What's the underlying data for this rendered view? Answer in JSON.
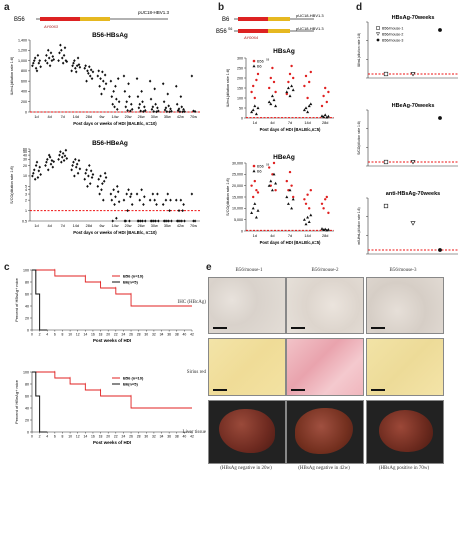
{
  "panels": {
    "a": {
      "letter": "a",
      "construct": {
        "strain": "B56",
        "label_right": "pUC18-HBV1.3",
        "ablbl": "AY0063",
        "arrows": [
          "S",
          "M",
          "X"
        ]
      },
      "hbsag_title": "B56-HBsAg",
      "hbsag_ylabel": "IU/mL(dilution rate 1:8)",
      "hbeag_title": "B56-HBeAg",
      "hbeag_ylabel": "S/CO(dilution rate 1:8)",
      "xlabel": "Post days or weeks of HDI (BALB/c, n=10)",
      "categories": [
        "1d",
        "4d",
        "7d",
        "14d",
        "28d",
        "6w",
        "14w",
        "20w",
        "26w",
        "30w",
        "35w",
        "42w",
        "70w"
      ]
    },
    "b": {
      "letter": "b",
      "construct": {
        "strain1": "B6",
        "strain2": "B56",
        "sup": "S6",
        "label1": "pUC18-HBV1.3",
        "label2": "pUC18-HBV1.3",
        "ablbl": "AY0064"
      },
      "hbsag_title": "HBsAg",
      "hbsag_ylabel": "IU/mL(dilution rate 1:8)",
      "hbeag_title": "HBeAg",
      "hbeag_ylabel": "S/CO(dilution rate 1:8)",
      "xlabel": "Post days of HDI (BALB/c,n=5)",
      "legend": [
        "B56",
        "B6"
      ],
      "legend_sup": "S6",
      "categories": [
        "1d",
        "4d",
        "7d",
        "14d",
        "28d"
      ]
    },
    "d": {
      "letter": "d",
      "hbsag_title": "HBsAg-70weeks",
      "hbsag_ylabel": "IU/mL(dilution rate 1:8)",
      "hbeag_title": "HBeAg-70weeks",
      "hbeag_ylabel": "S/CO(dilution rate 1:8)",
      "antihbs_title": "anti-HBsAg-70weeks",
      "antihbs_ylabel": "mIU/mL(dilution rate 1:8)",
      "legend": [
        "B56/mouse-1",
        "B56/mouse-2",
        "B56/mouse-3"
      ]
    },
    "c": {
      "letter": "c",
      "top_ylabel": "Percent of HBsAg+ mice",
      "bottom_ylabel": "Percent of HBeAg+ mice",
      "xlabel": "Post weeks of HDI",
      "legend": [
        "B56 (n=10)",
        "B6(n=5)"
      ],
      "xticks": [
        "0",
        "2",
        "4",
        "6",
        "8",
        "10",
        "12",
        "14",
        "16",
        "18",
        "20",
        "22",
        "24",
        "26",
        "28",
        "30",
        "32",
        "34",
        "36",
        "38",
        "40",
        "42"
      ],
      "yticks": [
        "0",
        "20",
        "40",
        "60",
        "80",
        "100"
      ]
    },
    "e": {
      "letter": "e",
      "columns": [
        "B56/mouse-1",
        "B56/mouse-2",
        "B56/mouse-3"
      ],
      "rows": [
        "IHC (HBcAg)",
        "Sirius red",
        "Liver tissue"
      ],
      "captions": [
        "(HBsAg negative in 20w)",
        "(HBsAg negative in 42w)",
        "(HBsAg positive in 70w)"
      ]
    }
  },
  "chart_data": [
    {
      "type": "scatter",
      "title": "B56-HBsAg",
      "ylabel": "IU/mL(dilution rate 1:8)",
      "xlabel": "Post days or weeks of HDI (BALB/c, n=10)",
      "categories": [
        "1d",
        "4d",
        "7d",
        "14d",
        "28d",
        "6w",
        "14w",
        "20w",
        "26w",
        "30w",
        "35w",
        "42w",
        "70w"
      ],
      "yticks": [
        0,
        200,
        400,
        600,
        800,
        1000,
        1200,
        1400
      ],
      "ylim": [
        0,
        1400
      ],
      "cutoff": 0.05,
      "series": [
        {
          "values": [
            [
              900,
              950,
              1000,
              1050,
              850,
              800,
              1100,
              950,
              1000,
              880
            ],
            [
              1000,
              1100,
              950,
              1200,
              1050,
              900,
              1150,
              1000,
              1080,
              1020
            ],
            [
              1000,
              1150,
              1300,
              1200,
              1050,
              950,
              1100,
              1250,
              1000,
              980
            ],
            [
              800,
              900,
              950,
              1000,
              850,
              780,
              900,
              1050,
              920,
              870
            ],
            [
              850,
              900,
              600,
              800,
              750,
              880,
              700,
              820,
              650,
              780
            ],
            [
              700,
              800,
              500,
              650,
              350,
              780,
              600,
              450,
              720,
              550
            ],
            [
              600,
              300,
              150,
              400,
              100,
              500,
              250,
              50,
              650,
              200
            ],
            [
              700,
              400,
              100,
              200,
              30,
              550,
              300,
              20,
              150,
              50
            ],
            [
              650,
              300,
              80,
              150,
              20,
              400,
              200,
              10,
              100,
              30
            ],
            [
              600,
              250,
              50,
              100,
              10,
              450,
              150,
              5,
              80,
              20
            ],
            [
              550,
              200,
              40,
              80,
              8,
              350,
              120,
              5,
              60,
              15
            ],
            [
              500,
              150,
              30,
              60,
              5,
              300,
              100,
              4,
              50,
              10
            ],
            [
              700,
              20,
              10
            ]
          ]
        }
      ]
    },
    {
      "type": "scatter",
      "title": "B56-HBeAg",
      "ylabel": "S/CO(dilution rate 1:8)",
      "xlabel": "Post days or weeks of HDI (BALB/c, n=10)",
      "categories": [
        "1d",
        "4d",
        "7d",
        "14d",
        "28d",
        "6w",
        "14w",
        "20w",
        "26w",
        "30w",
        "35w",
        "42w",
        "70w"
      ],
      "yticks": [
        0.5,
        1,
        2,
        3,
        4,
        5,
        10,
        20,
        30,
        40,
        50,
        60
      ],
      "cutoff": 1,
      "series": [
        {
          "values": [
            [
              10,
              12,
              15,
              8,
              20,
              25,
              9,
              14,
              18,
              11
            ],
            [
              20,
              25,
              30,
              15,
              40,
              35,
              22,
              28,
              18,
              26
            ],
            [
              30,
              40,
              50,
              25,
              35,
              45,
              28,
              38,
              55,
              32
            ],
            [
              15,
              20,
              25,
              10,
              30,
              18,
              22,
              12,
              28,
              16
            ],
            [
              8,
              12,
              15,
              5,
              10,
              20,
              6,
              14,
              9,
              11
            ],
            [
              5,
              8,
              3,
              10,
              4,
              6,
              2,
              7,
              12,
              9
            ],
            [
              3,
              2,
              0.5,
              4,
              1.5,
              2.5,
              0.6,
              5,
              3.5,
              1.8
            ],
            [
              2,
              0.5,
              0.5,
              3,
              1,
              4,
              0.5,
              2.5,
              3,
              1.5
            ],
            [
              3,
              0.5,
              0.5,
              2,
              0.5,
              4,
              0.5,
              1.5,
              2.5,
              0.5
            ],
            [
              2,
              0.5,
              0.5,
              3,
              0.5,
              2,
              0.5,
              1.5,
              3,
              0.5
            ],
            [
              1.5,
              0.5,
              0.5,
              2,
              0.5,
              3,
              0.5,
              1,
              2,
              0.5
            ],
            [
              2,
              0.5,
              0.5,
              1,
              0.5,
              2,
              0.5,
              1,
              1.5,
              0.5
            ],
            [
              3,
              0.5,
              0.5
            ]
          ]
        }
      ]
    },
    {
      "type": "scatter",
      "title": "HBsAg",
      "ylabel": "IU/mL(dilution rate 1:8)",
      "xlabel": "Post days of HDI (BALB/c,n=5)",
      "categories": [
        "1d",
        "4d",
        "7d",
        "14d",
        "28d"
      ],
      "yticks": [
        0,
        50,
        100,
        150,
        200,
        250,
        300
      ],
      "ylim": [
        0,
        300
      ],
      "series": [
        {
          "name": "B56",
          "values": [
            [
              130,
              160,
              100,
              190,
              220
            ],
            [
              150,
              200,
              250,
              180,
              130
            ],
            [
              120,
              180,
              220,
              260,
              200
            ],
            [
              160,
              210,
              100,
              180,
              230
            ],
            [
              60,
              110,
              150,
              80,
              130
            ]
          ]
        },
        {
          "name": "B6",
          "values": [
            [
              30,
              40,
              60,
              20,
              50
            ],
            [
              80,
              70,
              110,
              90,
              60
            ],
            [
              130,
              150,
              110,
              160,
              140
            ],
            [
              40,
              50,
              30,
              60,
              70
            ],
            [
              10,
              5,
              15,
              3,
              8
            ]
          ]
        }
      ]
    },
    {
      "type": "scatter",
      "title": "HBeAg",
      "ylabel": "S/CO(dilution rate 1:8)",
      "xlabel": "Post days of HDI (BALB/c,n=5)",
      "categories": [
        "1d",
        "4d",
        "7d",
        "14d",
        "28d"
      ],
      "yticks": [
        0,
        5000,
        10000,
        15000,
        20000,
        25000,
        30000
      ],
      "ylim": [
        0,
        30000
      ],
      "series": [
        {
          "name": "B56",
          "values": [
            [
              20000,
              15000,
              22000,
              18000,
              17000
            ],
            [
              28000,
              20000,
              25000,
              30000,
              18000
            ],
            [
              22000,
              18000,
              26000,
              20000,
              15000
            ],
            [
              14000,
              12000,
              16000,
              10000,
              18000
            ],
            [
              12000,
              10000,
              14000,
              15000,
              8000
            ]
          ]
        },
        {
          "name": "B6",
          "values": [
            [
              8000,
              10000,
              12000,
              6000,
              9000
            ],
            [
              20000,
              22000,
              18000,
              25000,
              21000
            ],
            [
              15000,
              12000,
              18000,
              10000,
              14000
            ],
            [
              5000,
              3000,
              6000,
              4000,
              7000
            ],
            [
              1000,
              500,
              800,
              300,
              600
            ]
          ]
        }
      ]
    },
    {
      "type": "scatter",
      "title": "HBsAg-70weeks",
      "series": [
        {
          "name": "B56/mouse-1",
          "values": [
            0
          ]
        },
        {
          "name": "B56/mouse-2",
          "values": [
            0
          ]
        },
        {
          "name": "B56/mouse-3",
          "values": [
            1
          ]
        }
      ]
    },
    {
      "type": "scatter",
      "title": "HBeAg-70weeks",
      "series": [
        {
          "name": "B56/mouse-1",
          "values": [
            0
          ]
        },
        {
          "name": "B56/mouse-2",
          "values": [
            0
          ]
        },
        {
          "name": "B56/mouse-3",
          "values": [
            1
          ]
        }
      ]
    },
    {
      "type": "scatter",
      "title": "anti-HBsAg-70weeks",
      "series": [
        {
          "name": "B56/mouse-1",
          "values": [
            1
          ]
        },
        {
          "name": "B56/mouse-2",
          "values": [
            0.5
          ]
        },
        {
          "name": "B56/mouse-3",
          "values": [
            0
          ]
        }
      ]
    },
    {
      "type": "line",
      "title": "",
      "ylabel": "Percent of HBsAg+ mice",
      "xlabel": "Post weeks of HDI",
      "xlim": [
        0,
        42
      ],
      "ylim": [
        0,
        100
      ],
      "series": [
        {
          "name": "B56 (n=10)",
          "steps": [
            [
              0,
              100
            ],
            [
              6,
              100
            ],
            [
              6,
              90
            ],
            [
              14,
              90
            ],
            [
              14,
              80
            ],
            [
              18,
              80
            ],
            [
              18,
              70
            ],
            [
              22,
              70
            ],
            [
              22,
              60
            ],
            [
              26,
              60
            ],
            [
              26,
              40
            ],
            [
              42,
              40
            ]
          ]
        },
        {
          "name": "B6(n=5)",
          "steps": [
            [
              0,
              100
            ],
            [
              1,
              100
            ],
            [
              1,
              60
            ],
            [
              2,
              60
            ],
            [
              2,
              0
            ],
            [
              4,
              0
            ]
          ]
        }
      ]
    },
    {
      "type": "line",
      "title": "",
      "ylabel": "Percent of HBeAg+ mice",
      "xlabel": "Post weeks of HDI",
      "xlim": [
        0,
        42
      ],
      "ylim": [
        0,
        100
      ],
      "series": [
        {
          "name": "B56 (n=10)",
          "steps": [
            [
              0,
              100
            ],
            [
              6,
              100
            ],
            [
              6,
              90
            ],
            [
              10,
              90
            ],
            [
              10,
              80
            ],
            [
              14,
              80
            ],
            [
              14,
              70
            ],
            [
              18,
              70
            ],
            [
              18,
              60
            ],
            [
              26,
              60
            ],
            [
              26,
              40
            ],
            [
              42,
              40
            ]
          ]
        },
        {
          "name": "B6(n=5)",
          "steps": [
            [
              0,
              100
            ],
            [
              1,
              100
            ],
            [
              1,
              60
            ],
            [
              2,
              60
            ],
            [
              2,
              0
            ],
            [
              4,
              0
            ]
          ]
        }
      ]
    }
  ]
}
